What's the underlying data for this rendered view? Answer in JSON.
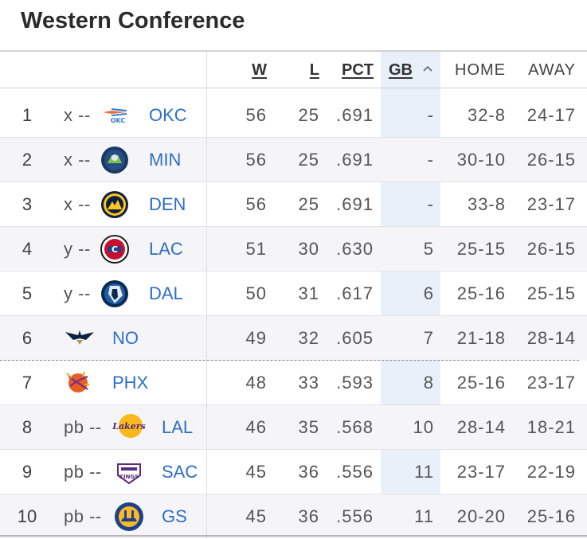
{
  "title": "Western Conference",
  "columns": {
    "w": "W",
    "l": "L",
    "pct": "PCT",
    "gb": "GB",
    "home": "HOME",
    "away": "AWAY"
  },
  "sort": {
    "column": "GB",
    "icon": "chevron-up-icon"
  },
  "colors": {
    "team_link": "#2e6ec6",
    "gb_highlight": "#e9f0fa",
    "alt_row": "#f5f5f7"
  },
  "rows": [
    {
      "rank": "1",
      "clinch": "x --",
      "logo": "okc-logo",
      "team": "OKC",
      "w": "56",
      "l": "25",
      "pct": ".691",
      "gb": "-",
      "home": "32-8",
      "away": "24-17"
    },
    {
      "rank": "2",
      "clinch": "x --",
      "logo": "min-logo",
      "team": "MIN",
      "w": "56",
      "l": "25",
      "pct": ".691",
      "gb": "-",
      "home": "30-10",
      "away": "26-15"
    },
    {
      "rank": "3",
      "clinch": "x --",
      "logo": "den-logo",
      "team": "DEN",
      "w": "56",
      "l": "25",
      "pct": ".691",
      "gb": "-",
      "home": "33-8",
      "away": "23-17"
    },
    {
      "rank": "4",
      "clinch": "y --",
      "logo": "lac-logo",
      "team": "LAC",
      "w": "51",
      "l": "30",
      "pct": ".630",
      "gb": "5",
      "home": "25-15",
      "away": "26-15"
    },
    {
      "rank": "5",
      "clinch": "y --",
      "logo": "dal-logo",
      "team": "DAL",
      "w": "50",
      "l": "31",
      "pct": ".617",
      "gb": "6",
      "home": "25-16",
      "away": "25-15"
    },
    {
      "rank": "6",
      "clinch": "",
      "logo": "no-logo",
      "team": "NO",
      "w": "49",
      "l": "32",
      "pct": ".605",
      "gb": "7",
      "home": "21-18",
      "away": "28-14"
    },
    {
      "rank": "7",
      "clinch": "",
      "logo": "phx-logo",
      "team": "PHX",
      "w": "48",
      "l": "33",
      "pct": ".593",
      "gb": "8",
      "home": "25-16",
      "away": "23-17"
    },
    {
      "rank": "8",
      "clinch": "pb --",
      "logo": "lal-logo",
      "team": "LAL",
      "w": "46",
      "l": "35",
      "pct": ".568",
      "gb": "10",
      "home": "28-14",
      "away": "18-21"
    },
    {
      "rank": "9",
      "clinch": "pb --",
      "logo": "sac-logo",
      "team": "SAC",
      "w": "45",
      "l": "36",
      "pct": ".556",
      "gb": "11",
      "home": "23-17",
      "away": "22-19"
    },
    {
      "rank": "10",
      "clinch": "pb --",
      "logo": "gs-logo",
      "team": "GS",
      "w": "45",
      "l": "36",
      "pct": ".556",
      "gb": "11",
      "home": "20-20",
      "away": "25-16"
    }
  ]
}
